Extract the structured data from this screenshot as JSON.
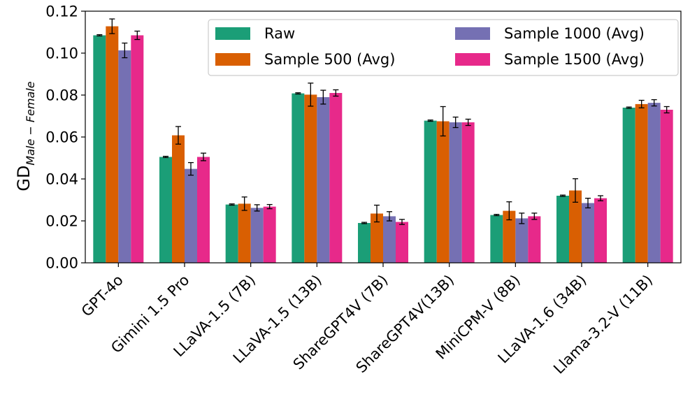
{
  "chart_data": {
    "type": "bar",
    "ylabel": {
      "main": "GD",
      "subscript": "Male − Female"
    },
    "ylim": [
      0,
      0.12
    ],
    "yticks": [
      0.0,
      0.02,
      0.04,
      0.06,
      0.08,
      0.1,
      0.12
    ],
    "ytick_labels": [
      "0.00",
      "0.02",
      "0.04",
      "0.06",
      "0.08",
      "0.10",
      "0.12"
    ],
    "grid": false,
    "legend_position": "top-right",
    "categories": [
      "GPT-4o",
      "Gimini 1.5 Pro",
      "LLaVA-1.5 (7B)",
      "LLaVA-1.5 (13B)",
      "ShareGPT4V (7B)",
      "ShareGPT4V(13B)",
      "MiniCPM-V (8B)",
      "LLaVA-1.6 (34B)",
      "Llama-3.2-V (11B)"
    ],
    "series": [
      {
        "name": "Raw",
        "color": "#1b9e77",
        "values": [
          0.1085,
          0.0505,
          0.0278,
          0.0808,
          0.019,
          0.0678,
          0.0228,
          0.032,
          0.074
        ],
        "errors": [
          0.0003,
          0.0003,
          0.0003,
          0.0003,
          0.0003,
          0.0003,
          0.0003,
          0.0003,
          0.0003
        ]
      },
      {
        "name": "Sample 500 (Avg)",
        "color": "#d95f02",
        "values": [
          0.1128,
          0.0608,
          0.0282,
          0.0802,
          0.0235,
          0.0675,
          0.0248,
          0.0345,
          0.0757
        ],
        "errors": [
          0.0035,
          0.0042,
          0.0032,
          0.0055,
          0.004,
          0.007,
          0.0043,
          0.0056,
          0.0018
        ]
      },
      {
        "name": "Sample 1000 (Avg)",
        "color": "#7570b3",
        "values": [
          0.1013,
          0.0448,
          0.0262,
          0.079,
          0.0222,
          0.067,
          0.0212,
          0.0285,
          0.0763
        ],
        "errors": [
          0.0035,
          0.003,
          0.0015,
          0.0033,
          0.0022,
          0.0025,
          0.0025,
          0.0023,
          0.0015
        ]
      },
      {
        "name": "Sample 1500 (Avg)",
        "color": "#e7298a",
        "values": [
          0.1085,
          0.0505,
          0.0268,
          0.081,
          0.0195,
          0.067,
          0.0222,
          0.0308,
          0.073
        ],
        "errors": [
          0.002,
          0.0018,
          0.001,
          0.0015,
          0.0012,
          0.0015,
          0.0015,
          0.0012,
          0.0015
        ]
      }
    ]
  }
}
